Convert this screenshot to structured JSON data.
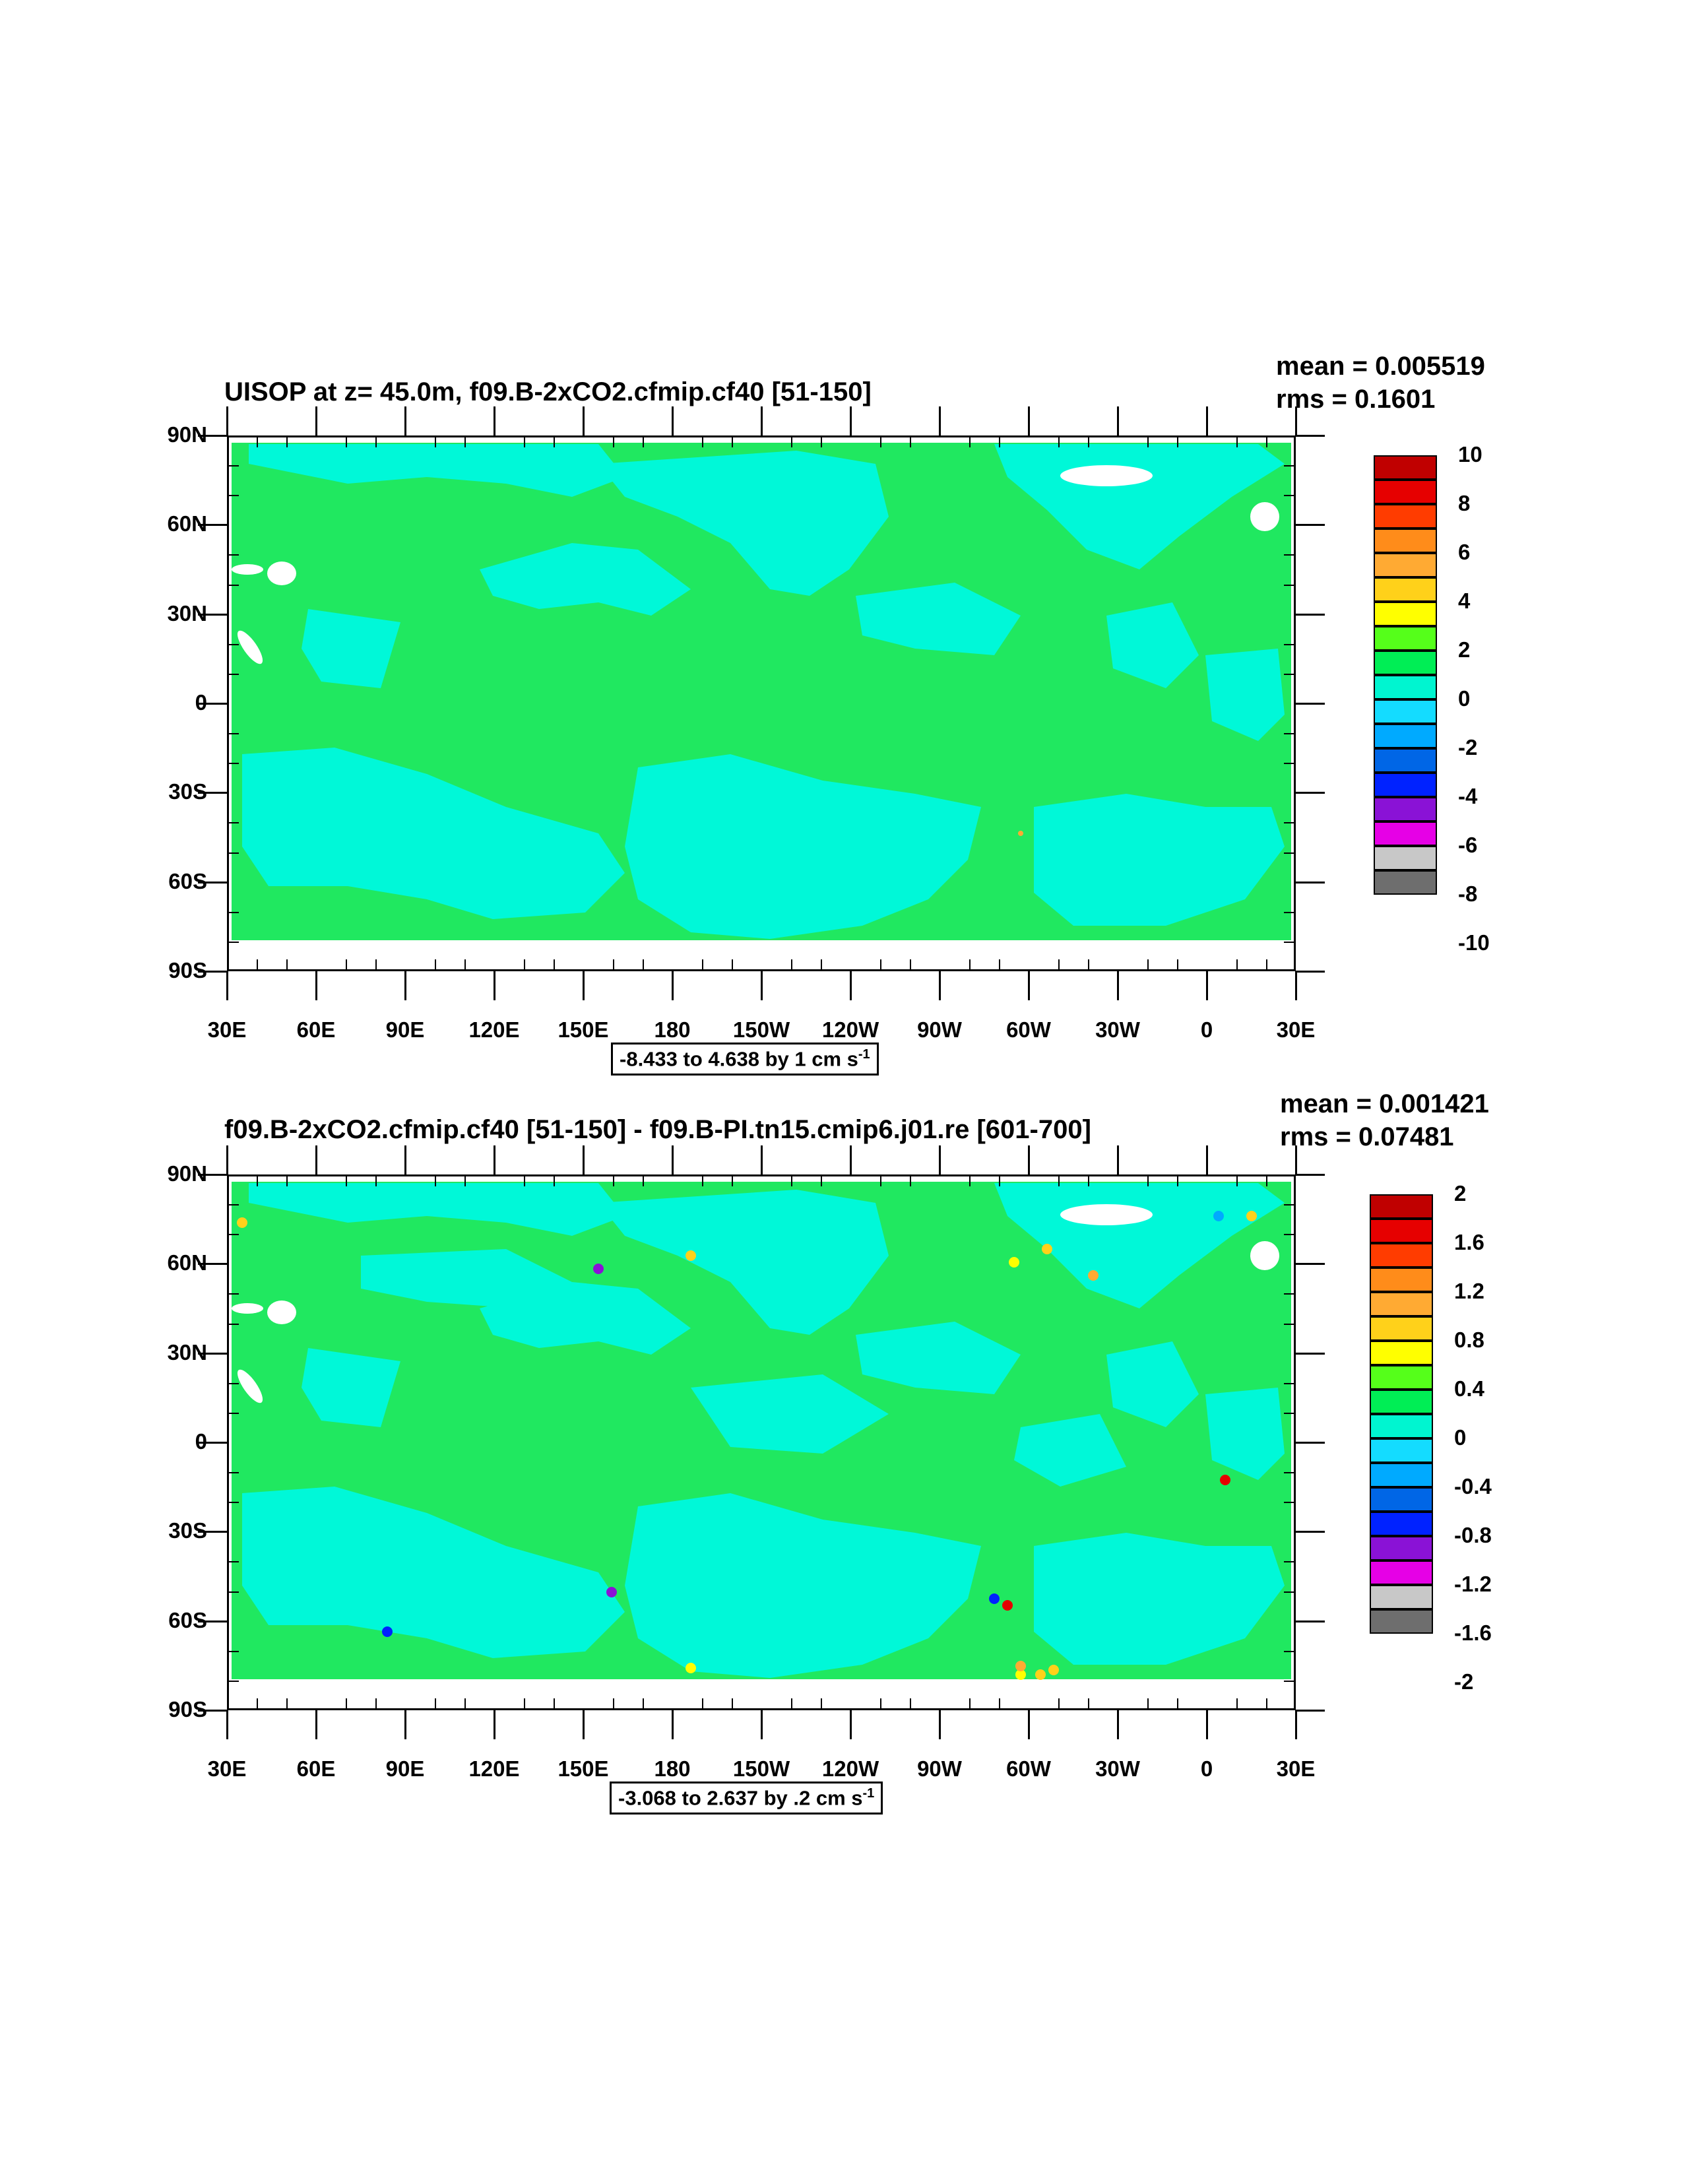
{
  "panels": [
    {
      "title": "UISOP at z=  45.0m, f09.B-2xCO2.cfmip.cf40 [51-150]",
      "mean": "mean = 0.005519",
      "rms": "rms = 0.1601",
      "range_text": "-8.433 to 4.638 by 1 cm s",
      "range_sup": "-1",
      "colorbar_labels": [
        "10",
        "8",
        "6",
        "4",
        "2",
        "0",
        "-2",
        "-4",
        "-6",
        "-8",
        "-10"
      ]
    },
    {
      "title": "f09.B-2xCO2.cfmip.cf40 [51-150] - f09.B-PI.tn15.cmip6.j01.re [601-700]",
      "mean": "mean = 0.001421",
      "rms": "rms = 0.07481",
      "range_text": "-3.068 to 2.637 by .2 cm s",
      "range_sup": "-1",
      "colorbar_labels": [
        "2",
        "1.6",
        "1.2",
        "0.8",
        "0.4",
        "0",
        "-0.4",
        "-0.8",
        "-1.2",
        "-1.6",
        "-2"
      ]
    }
  ],
  "axes": {
    "y_ticks": [
      "90N",
      "60N",
      "30N",
      "0",
      "30S",
      "60S",
      "90S"
    ],
    "x_ticks": [
      "30E",
      "60E",
      "90E",
      "120E",
      "150E",
      "180",
      "150W",
      "120W",
      "90W",
      "60W",
      "30W",
      "0",
      "30E"
    ]
  },
  "colorbar_colors": [
    "#c00000",
    "#e60000",
    "#ff3c00",
    "#ff8c1a",
    "#ffaa33",
    "#ffd11a",
    "#ffff00",
    "#55ff1a",
    "#00ee55",
    "#00f5d0",
    "#14dcff",
    "#00aaff",
    "#0066e6",
    "#0022ff",
    "#8a12d6",
    "#e600e6",
    "#c8c8c8",
    "#6e6e6e"
  ],
  "map_colors": {
    "zero_pos": "#20e860",
    "zero_neg": "#00f8d8",
    "missing": "#ffffff"
  }
}
